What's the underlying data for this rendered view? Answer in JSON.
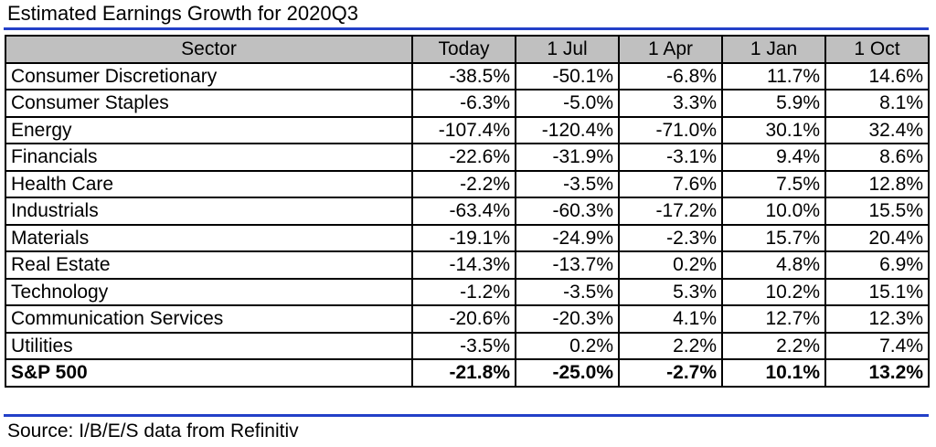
{
  "title": "Estimated Earnings Growth for 2020Q3",
  "table": {
    "headers": [
      "Sector",
      "Today",
      "1 Jul",
      "1 Apr",
      "1 Jan",
      "1 Oct"
    ],
    "rows": [
      [
        "Consumer Discretionary",
        "-38.5%",
        "-50.1%",
        "-6.8%",
        "11.7%",
        "14.6%"
      ],
      [
        "Consumer Staples",
        "-6.3%",
        "-5.0%",
        "3.3%",
        "5.9%",
        "8.1%"
      ],
      [
        "Energy",
        "-107.4%",
        "-120.4%",
        "-71.0%",
        "30.1%",
        "32.4%"
      ],
      [
        "Financials",
        "-22.6%",
        "-31.9%",
        "-3.1%",
        "9.4%",
        "8.6%"
      ],
      [
        "Health Care",
        "-2.2%",
        "-3.5%",
        "7.6%",
        "7.5%",
        "12.8%"
      ],
      [
        "Industrials",
        "-63.4%",
        "-60.3%",
        "-17.2%",
        "10.0%",
        "15.5%"
      ],
      [
        "Materials",
        "-19.1%",
        "-24.9%",
        "-2.3%",
        "15.7%",
        "20.4%"
      ],
      [
        "Real Estate",
        "-14.3%",
        "-13.7%",
        "0.2%",
        "4.8%",
        "6.9%"
      ],
      [
        "Technology",
        "-1.2%",
        "-3.5%",
        "5.3%",
        "10.2%",
        "15.1%"
      ],
      [
        "Communication Services",
        "-20.6%",
        "-20.3%",
        "4.1%",
        "12.7%",
        "12.3%"
      ],
      [
        "Utilities",
        "-3.5%",
        "0.2%",
        "2.2%",
        "2.2%",
        "7.4%"
      ]
    ],
    "total": [
      "S&P 500",
      "-21.8%",
      "-25.0%",
      "-2.7%",
      "10.1%",
      "13.2%"
    ]
  },
  "source": "Source: I/B/E/S data from Refinitiv",
  "colors": {
    "accent_rule": "#2340c8",
    "header_bg": "#c0c0c0"
  }
}
